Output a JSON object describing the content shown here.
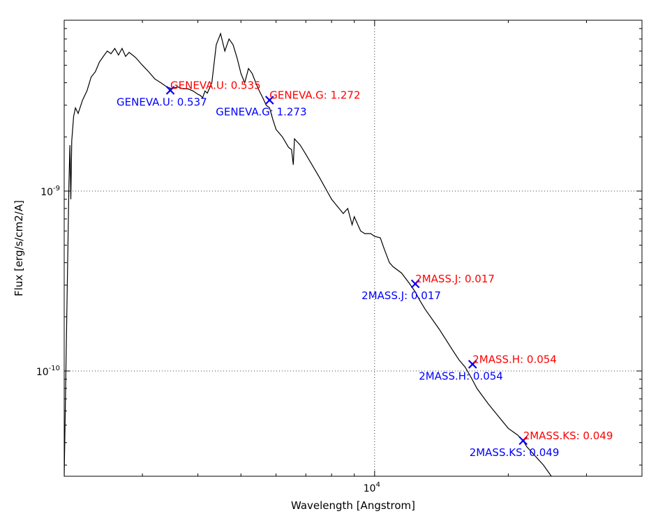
{
  "chart_data": {
    "type": "line",
    "title": "",
    "xlabel": "Wavelength [Angstrom]",
    "ylabel": "Flux [erg/s/cm2/A]",
    "x_scale": "log",
    "y_scale": "log",
    "xlim": [
      2000,
      40000
    ],
    "ylim": [
      2.6e-11,
      8.9e-09
    ],
    "grid": true,
    "x_ticks": [
      {
        "value": 10000,
        "label": "10",
        "exp": "4"
      }
    ],
    "y_ticks": [
      {
        "value": 1e-09,
        "label": "10",
        "exp": "-9"
      },
      {
        "value": 1e-10,
        "label": "10",
        "exp": "-10"
      }
    ],
    "colors": {
      "model": "#000000",
      "observed": "#ff0000",
      "synthetic": "#0000ff"
    },
    "model_spectrum": {
      "x": [
        2000,
        2030,
        2050,
        2060,
        2070,
        2080,
        2100,
        2120,
        2150,
        2200,
        2250,
        2300,
        2350,
        2400,
        2450,
        2500,
        2550,
        2600,
        2650,
        2700,
        2750,
        2800,
        2850,
        2900,
        3000,
        3100,
        3200,
        3300,
        3400,
        3500,
        3600,
        3700,
        3800,
        3900,
        4000,
        4050,
        4100,
        4150,
        4200,
        4300,
        4400,
        4500,
        4600,
        4700,
        4800,
        4900,
        5000,
        5100,
        5200,
        5300,
        5400,
        5500,
        5600,
        5700,
        5800,
        5900,
        6000,
        6200,
        6400,
        6500,
        6560,
        6600,
        6800,
        7000,
        7500,
        8000,
        8500,
        8700,
        8900,
        9000,
        9300,
        9500,
        9800,
        10000,
        10300,
        10500,
        10800,
        11000,
        11500,
        12000,
        12350,
        12600,
        13000,
        14000,
        15000,
        15500,
        16000,
        16500,
        17000,
        18000,
        19000,
        20000,
        21000,
        21600,
        22000,
        24000,
        25000
      ],
      "y": [
        2.6e-11,
        2.5e-10,
        1.1e-09,
        1.8e-09,
        9e-10,
        1.9e-09,
        2.6e-09,
        2.9e-09,
        2.7e-09,
        3.2e-09,
        3.6e-09,
        4.3e-09,
        4.6e-09,
        5.2e-09,
        5.6e-09,
        6e-09,
        5.8e-09,
        6.2e-09,
        5.7e-09,
        6.2e-09,
        5.6e-09,
        5.9e-09,
        5.7e-09,
        5.5e-09,
        5e-09,
        4.6e-09,
        4.2e-09,
        4e-09,
        3.8e-09,
        3.7e-09,
        3.8e-09,
        3.7e-09,
        3.7e-09,
        3.6e-09,
        3.45e-09,
        3.4e-09,
        3.3e-09,
        3.6e-09,
        3.5e-09,
        4e-09,
        6.5e-09,
        7.5e-09,
        6e-09,
        7e-09,
        6.5e-09,
        5.5e-09,
        4.5e-09,
        4e-09,
        4.8e-09,
        4.5e-09,
        4e-09,
        3.6e-09,
        3.3e-09,
        3e-09,
        2.9e-09,
        2.5e-09,
        2.2e-09,
        2e-09,
        1.75e-09,
        1.7e-09,
        1.4e-09,
        1.95e-09,
        1.8e-09,
        1.6e-09,
        1.2e-09,
        9e-10,
        7.5e-10,
        8e-10,
        6.5e-10,
        7.2e-10,
        6e-10,
        5.8e-10,
        5.8e-10,
        5.6e-10,
        5.5e-10,
        4.8e-10,
        4e-10,
        3.8e-10,
        3.5e-10,
        3.05e-10,
        2.75e-10,
        2.5e-10,
        2.2e-10,
        1.7e-10,
        1.3e-10,
        1.15e-10,
        1.05e-10,
        9.2e-11,
        8e-11,
        6.6e-11,
        5.6e-11,
        4.8e-11,
        4.4e-11,
        4.1e-11,
        3.8e-11,
        3e-11,
        2.6e-11
      ]
    },
    "photometry": [
      {
        "x": 3467,
        "y": 3.63e-09,
        "observed_label": "GENEVA.U: 0.535",
        "synthetic_label": "GENEVA.U: 0.537"
      },
      {
        "x": 5800,
        "y": 3.2e-09,
        "observed_label": "GENEVA.G: 1.272",
        "synthetic_label": "GENEVA.G: 1.273"
      },
      {
        "x": 12350,
        "y": 3.05e-10,
        "observed_label": "2MASS.J: 0.017",
        "synthetic_label": "2MASS.J: 0.017"
      },
      {
        "x": 16620,
        "y": 1.09e-10,
        "observed_label": "2MASS.H: 0.054",
        "synthetic_label": "2MASS.H: 0.054"
      },
      {
        "x": 21600,
        "y": 4.1e-11,
        "observed_label": "2MASS.KS: 0.049",
        "synthetic_label": "2MASS.KS: 0.049"
      }
    ]
  }
}
